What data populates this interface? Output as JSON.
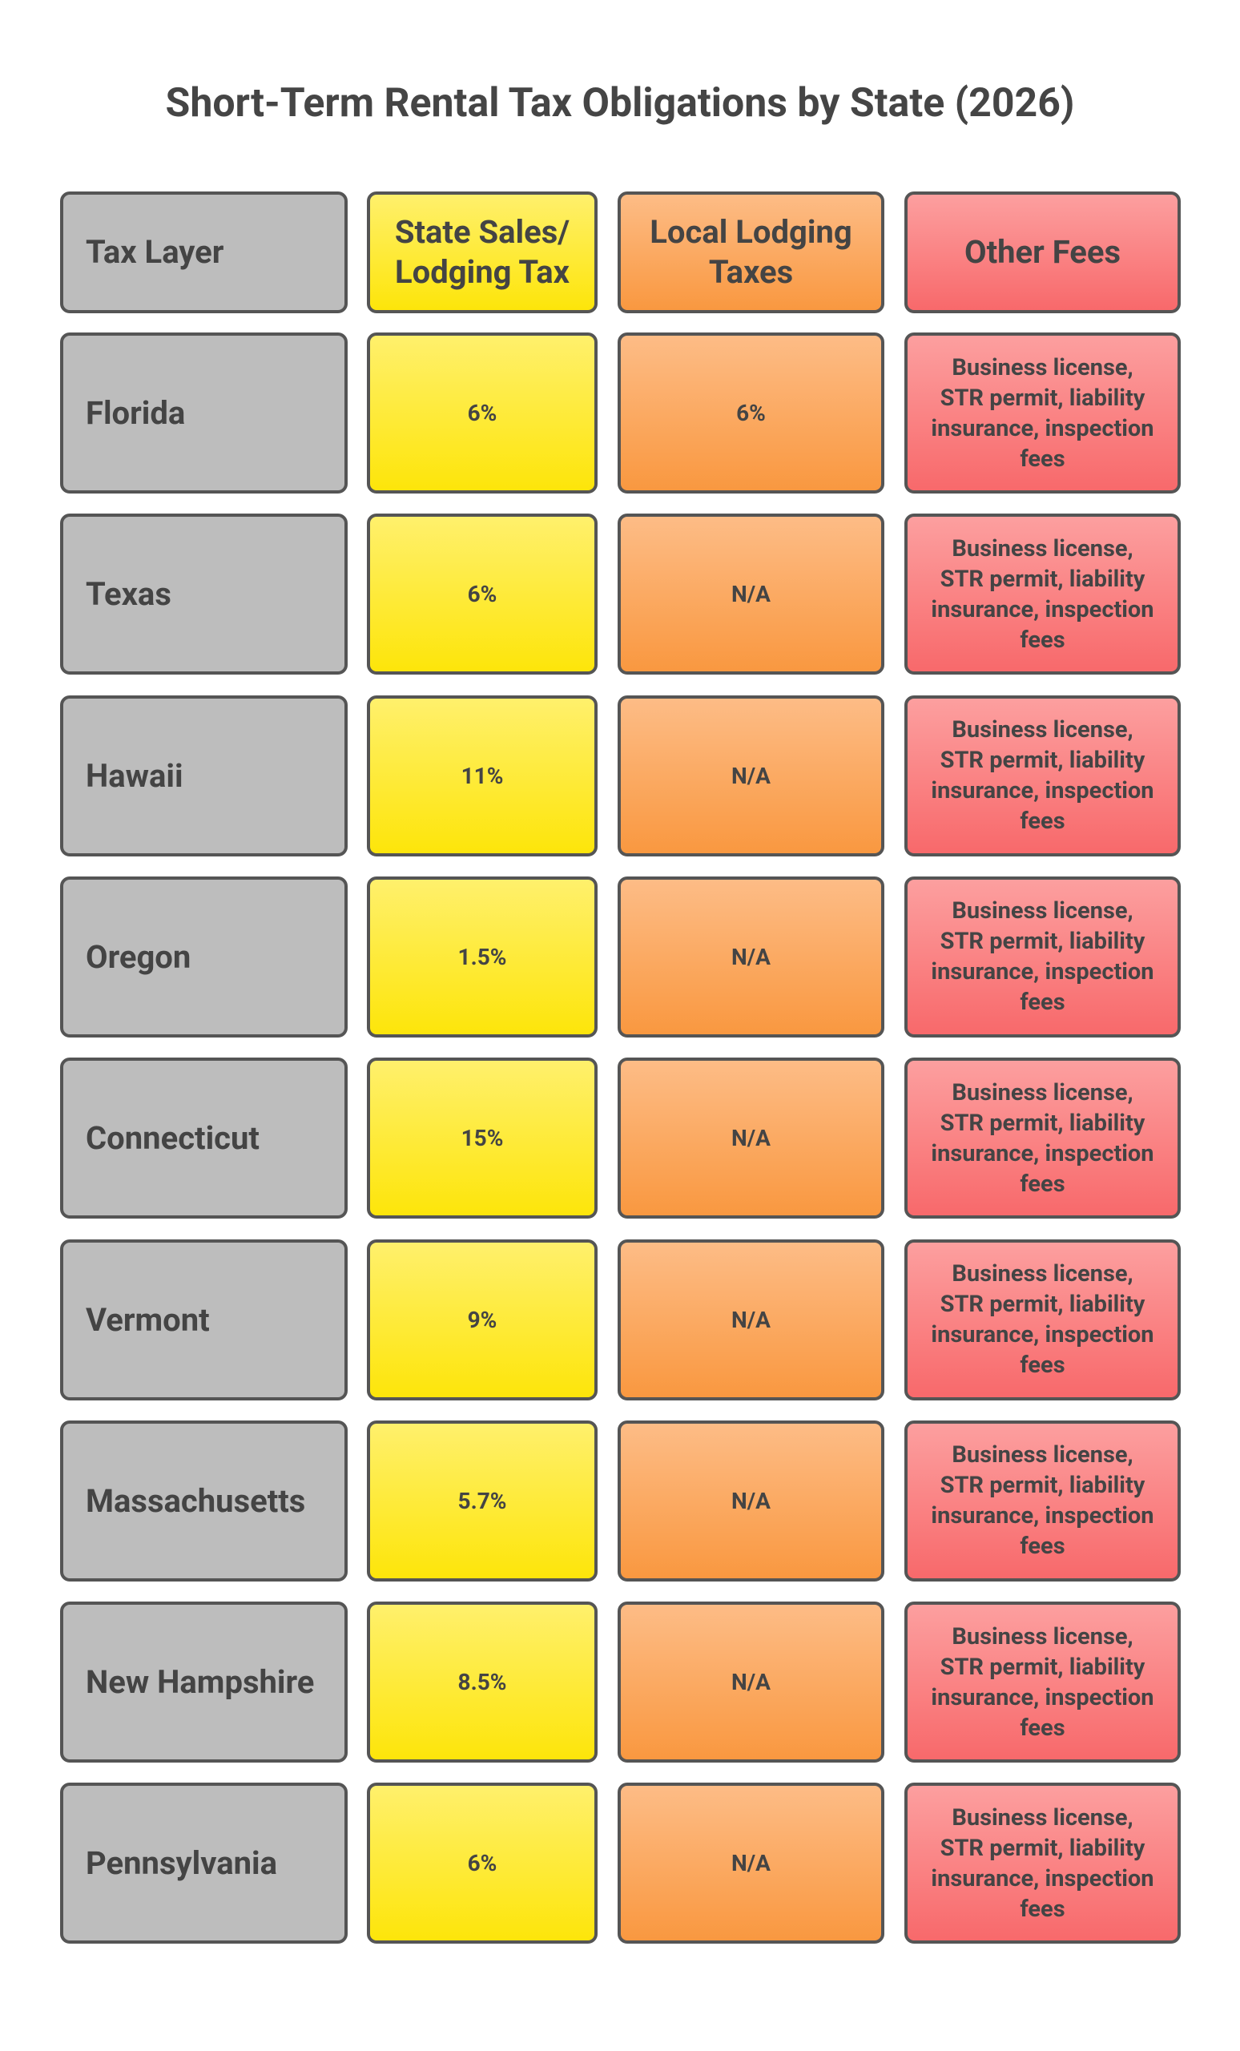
{
  "title": "Short-Term Rental Tax Obligations by State (2026)",
  "table": {
    "header": [
      "Tax Layer",
      "State Sales/ Lodging Tax",
      "Local Lodging Taxes",
      "Other Fees"
    ],
    "rows": [
      [
        "Florida",
        "6%",
        "6%",
        "Business license, STR permit, liability insurance, inspection fees"
      ],
      [
        "Texas",
        "6%",
        "N/A",
        "Business license, STR permit, liability insurance, inspection fees"
      ],
      [
        "Hawaii",
        "11%",
        "N/A",
        "Business license, STR permit, liability insurance, inspection fees"
      ],
      [
        "Oregon",
        "1.5%",
        "N/A",
        "Business license, STR permit, liability insurance, inspection fees"
      ],
      [
        "Connecticut",
        "15%",
        "N/A",
        "Business license, STR permit, liability insurance, inspection fees"
      ],
      [
        "Vermont",
        "9%",
        "N/A",
        "Business license, STR permit, liability insurance, inspection fees"
      ],
      [
        "Massachusetts",
        "5.7%",
        "N/A",
        "Business license, STR permit, liability insurance, inspection fees"
      ],
      [
        "New Hampshire",
        "8.5%",
        "N/A",
        "Business license, STR permit, liability insurance, inspection fees"
      ],
      [
        "Pennsylvania",
        "6%",
        "N/A",
        "Business license, STR permit, liability insurance, inspection fees"
      ]
    ]
  }
}
